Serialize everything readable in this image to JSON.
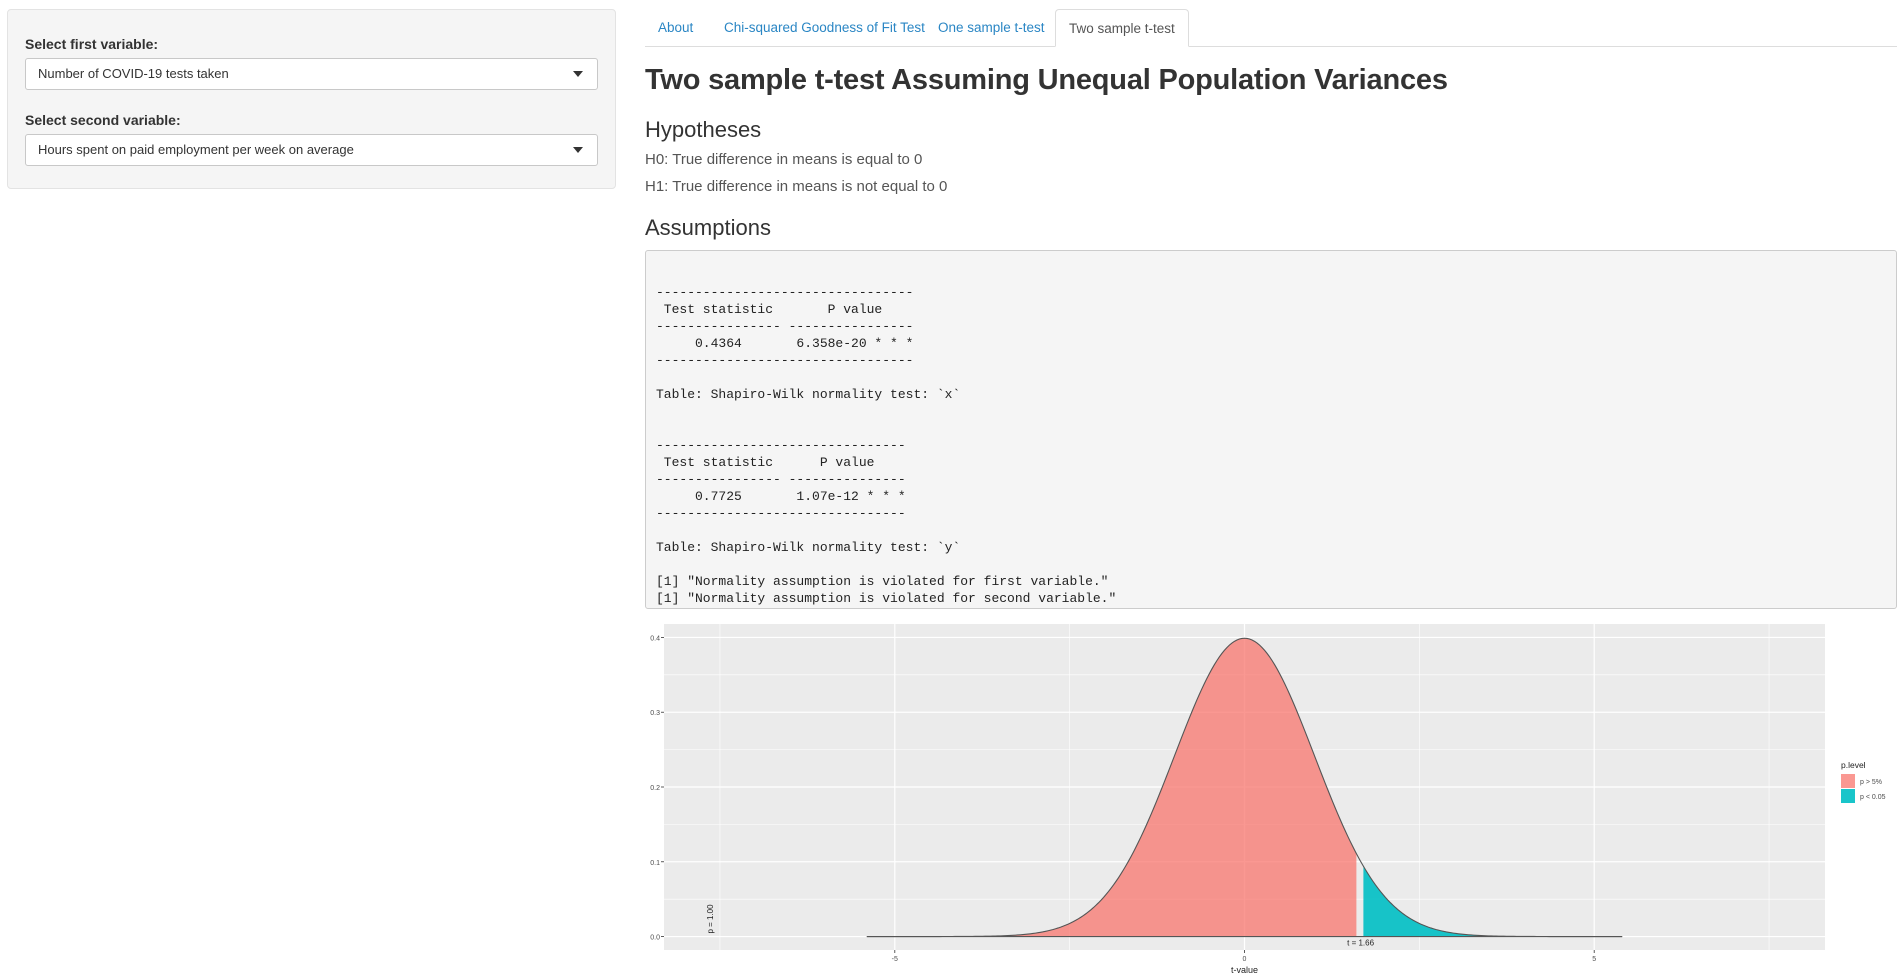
{
  "sidebar": {
    "first_label": "Select first variable:",
    "first_value": "Number of COVID-19 tests taken",
    "second_label": "Select second variable:",
    "second_value": "Hours spent on paid employment per week on average"
  },
  "tabs": [
    {
      "label": "About"
    },
    {
      "label": "Chi-squared Goodness of Fit Test"
    },
    {
      "label": "One sample t-test"
    },
    {
      "label": "Two sample t-test"
    }
  ],
  "main": {
    "title": "Two sample t-test Assuming Unequal Population Variances",
    "hypotheses_heading": "Hypotheses",
    "h0": "H0: True difference in means is equal to 0",
    "h1": "H1: True difference in means is not equal to 0",
    "assumptions_heading": "Assumptions",
    "output": "\n---------------------------------\n Test statistic       P value    \n---------------- ----------------\n     0.4364       6.358e-20 * * *\n---------------------------------\n\nTable: Shapiro-Wilk normality test: `x`\n\n\n--------------------------------\n Test statistic      P value    \n---------------- ---------------\n     0.7725       1.07e-12 * * *\n--------------------------------\n\nTable: Shapiro-Wilk normality test: `y`\n\n[1] \"Normality assumption is violated for first variable.\"\n[1] \"Normality assumption is violated for second variable.\""
  },
  "chart_data": {
    "type": "area",
    "distribution": "student-t",
    "xlim": [
      -8.3,
      8.3
    ],
    "ylim": [
      0,
      0.4
    ],
    "x_ticks": [
      -5,
      0,
      5
    ],
    "y_ticks": [
      0.0,
      0.1,
      0.2,
      0.3,
      0.4
    ],
    "x_tick_labels": [
      "-5",
      "0",
      "5"
    ],
    "y_tick_labels": [
      "0.0",
      "0.1",
      "0.2",
      "0.3",
      "0.4"
    ],
    "curve_x_range": [
      -5.4,
      5.4
    ],
    "t_statistic": 1.66,
    "critical_value": 1.65,
    "xlabel": "t-value",
    "ylabel": "",
    "annotations": {
      "t_label": "t = 1.66",
      "p_label": "p = 1.00"
    },
    "legend": {
      "title": "p.level",
      "position": "right",
      "entries": [
        {
          "label": "p > 5%",
          "color": "#F8766D"
        },
        {
          "label": "p < 0.05",
          "color": "#00BFC4"
        }
      ]
    },
    "colors": {
      "panel": "#EBEBEB",
      "grid": "#FFFFFF",
      "curve": "#555555"
    }
  }
}
